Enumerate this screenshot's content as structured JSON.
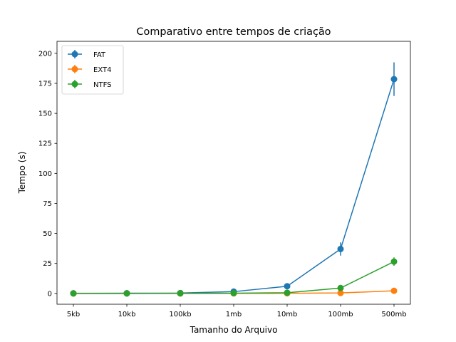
{
  "chart_data": {
    "type": "line",
    "title": "Comparativo entre tempos de criação",
    "xlabel": "Tamanho do Arquivo",
    "ylabel": "Tempo (s)",
    "categories": [
      "5kb",
      "10kb",
      "100kb",
      "1mb",
      "10mb",
      "100mb",
      "500mb"
    ],
    "ylim": [
      -9,
      210
    ],
    "yticks": [
      0,
      25,
      50,
      75,
      100,
      125,
      150,
      175,
      200
    ],
    "grid": false,
    "legend_position": "top-left",
    "series": [
      {
        "name": "FAT",
        "color": "#1f77b4",
        "values": [
          0.1,
          0.2,
          0.3,
          1.5,
          6.0,
          37.0,
          178.5
        ],
        "errors": [
          0.1,
          0.1,
          0.1,
          0.3,
          0.8,
          5.5,
          14.0
        ]
      },
      {
        "name": "EXT4",
        "color": "#ff7f0e",
        "values": [
          0.0,
          0.0,
          0.0,
          0.05,
          0.1,
          0.4,
          2.2
        ],
        "errors": [
          0.0,
          0.0,
          0.0,
          0.02,
          0.05,
          0.1,
          0.3
        ]
      },
      {
        "name": "NTFS",
        "color": "#2ca02c",
        "values": [
          0.0,
          0.0,
          0.1,
          0.2,
          0.6,
          4.5,
          26.5
        ],
        "errors": [
          0.0,
          0.0,
          0.0,
          0.1,
          0.2,
          0.8,
          3.5
        ]
      }
    ]
  }
}
